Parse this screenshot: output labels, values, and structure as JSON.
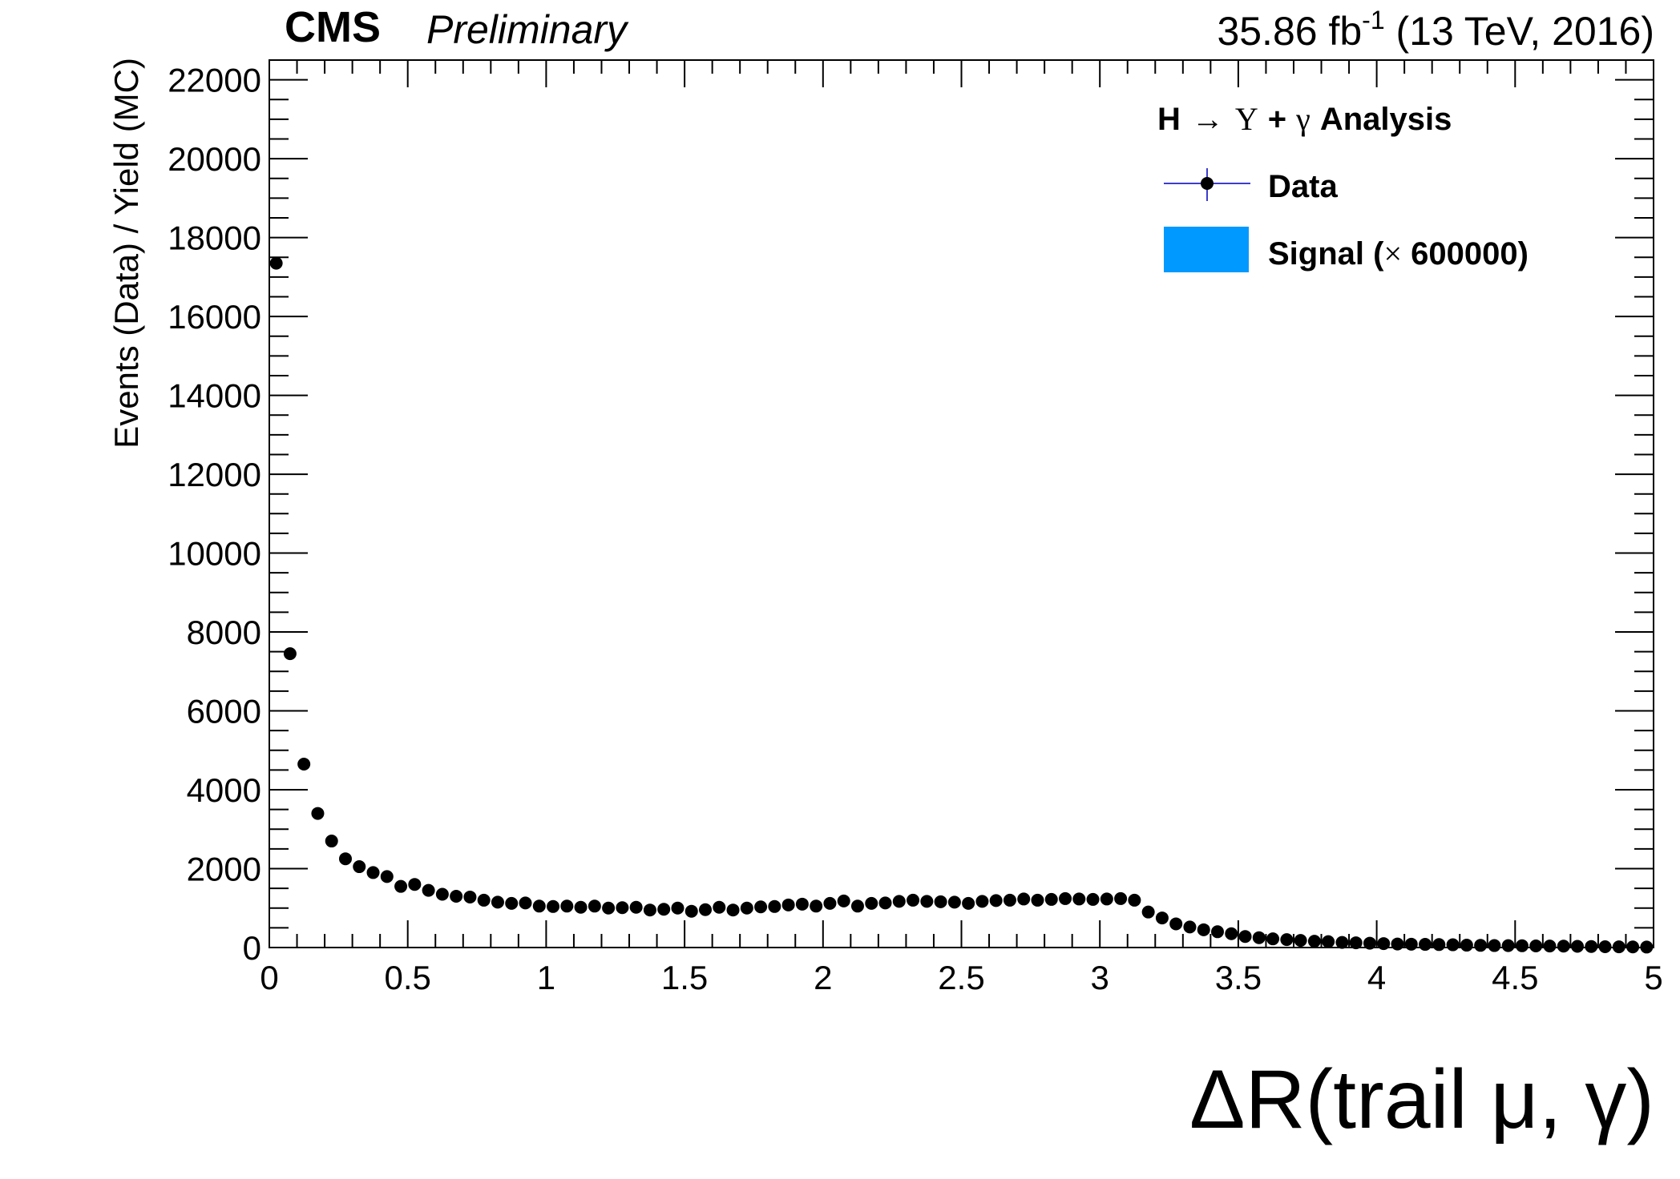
{
  "header": {
    "experiment": "CMS",
    "status": "Preliminary",
    "lumi_value": "35.86 fb",
    "lumi_exp": "-1",
    "lumi_rest": " (13 TeV, 2016)"
  },
  "legend": {
    "title_h": "H",
    "title_arrow": "→",
    "title_upsilon": "Υ",
    "title_plus": "+",
    "title_gamma": "γ",
    "title_rest": "Analysis",
    "data_label": "Data",
    "signal_label_pre": "Signal (",
    "signal_times": "×",
    "signal_label_post": " 600000)",
    "data_line_color": "#3d3dcc",
    "signal_color": "#0099ff"
  },
  "chart_data": {
    "type": "scatter",
    "xlabel": "ΔR(trail μ, γ)",
    "ylabel": "Events (Data) / Yield (MC)",
    "xlim": [
      0,
      5
    ],
    "ylim": [
      0,
      22500
    ],
    "x_ticks": [
      "0",
      "0.5",
      "1",
      "1.5",
      "2",
      "2.5",
      "3",
      "3.5",
      "4",
      "4.5",
      "5"
    ],
    "y_ticks": [
      "0",
      "2000",
      "4000",
      "6000",
      "8000",
      "10000",
      "12000",
      "14000",
      "16000",
      "18000",
      "20000",
      "22000"
    ],
    "series": [
      {
        "name": "Data",
        "marker_color": "#000000",
        "x": [
          0.025,
          0.075,
          0.125,
          0.175,
          0.225,
          0.275,
          0.325,
          0.375,
          0.425,
          0.475,
          0.525,
          0.575,
          0.625,
          0.675,
          0.725,
          0.775,
          0.825,
          0.875,
          0.925,
          0.975,
          1.025,
          1.075,
          1.125,
          1.175,
          1.225,
          1.275,
          1.325,
          1.375,
          1.425,
          1.475,
          1.525,
          1.575,
          1.625,
          1.675,
          1.725,
          1.775,
          1.825,
          1.875,
          1.925,
          1.975,
          2.025,
          2.075,
          2.125,
          2.175,
          2.225,
          2.275,
          2.325,
          2.375,
          2.425,
          2.475,
          2.525,
          2.575,
          2.625,
          2.675,
          2.725,
          2.775,
          2.825,
          2.875,
          2.925,
          2.975,
          3.025,
          3.075,
          3.125,
          3.175,
          3.225,
          3.275,
          3.325,
          3.375,
          3.425,
          3.475,
          3.525,
          3.575,
          3.625,
          3.675,
          3.725,
          3.775,
          3.825,
          3.875,
          3.925,
          3.975,
          4.025,
          4.075,
          4.125,
          4.175,
          4.225,
          4.275,
          4.325,
          4.375,
          4.425,
          4.475,
          4.525,
          4.575,
          4.625,
          4.675,
          4.725,
          4.775,
          4.825,
          4.875,
          4.925,
          4.975
        ],
        "y": [
          17350,
          7450,
          4650,
          3400,
          2700,
          2250,
          2050,
          1900,
          1800,
          1550,
          1600,
          1450,
          1350,
          1300,
          1280,
          1200,
          1150,
          1120,
          1130,
          1050,
          1040,
          1050,
          1020,
          1050,
          1000,
          1010,
          1020,
          950,
          970,
          1000,
          920,
          960,
          1020,
          950,
          1000,
          1030,
          1040,
          1080,
          1100,
          1050,
          1120,
          1180,
          1050,
          1120,
          1130,
          1170,
          1200,
          1170,
          1160,
          1150,
          1120,
          1170,
          1190,
          1200,
          1230,
          1200,
          1220,
          1240,
          1230,
          1220,
          1230,
          1240,
          1200,
          900,
          750,
          600,
          520,
          450,
          400,
          350,
          280,
          250,
          220,
          200,
          180,
          160,
          150,
          130,
          120,
          110,
          100,
          90,
          85,
          80,
          75,
          70,
          60,
          55,
          50,
          48,
          45,
          40,
          38,
          35,
          30,
          25,
          20,
          18,
          15,
          12
        ]
      },
      {
        "name": "Signal (× 600000)",
        "color": "#0099ff",
        "values": []
      }
    ]
  }
}
